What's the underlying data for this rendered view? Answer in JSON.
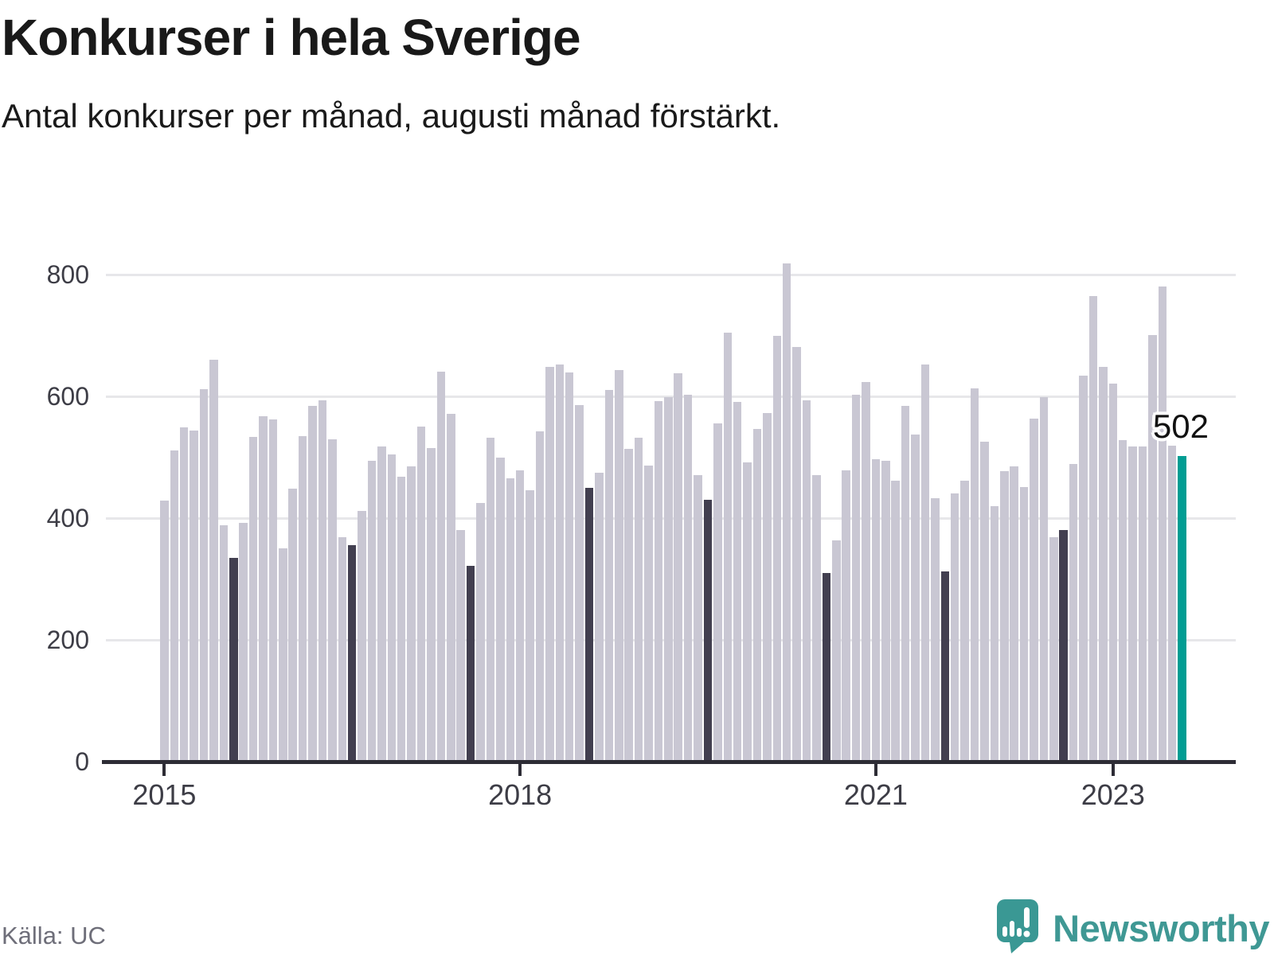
{
  "title": "Konkurser i hela Sverige",
  "subtitle": "Antal konkurser per månad, augusti månad förstärkt.",
  "source": "Källa: UC",
  "logo": {
    "text": "Newsworthy",
    "icon": "newsworthy-speech-bubble-chart-icon"
  },
  "annotation": {
    "value_label": "502"
  },
  "colors": {
    "bar": "#c9c7d3",
    "bar_august": "#423f50",
    "bar_highlight": "#009d93",
    "axis": "#2d2c35",
    "gridline": "#e7e7ea",
    "text": "#191919",
    "muted_text": "#6e6e79",
    "logo_teal": "#3f9894"
  },
  "chart_data": {
    "type": "bar",
    "title": "Konkurser i hela Sverige",
    "subtitle": "Antal konkurser per månad, augusti månad förstärkt.",
    "ylabel": "",
    "xlabel": "",
    "ylim": [
      0,
      860
    ],
    "y_ticks": [
      0,
      200,
      400,
      600,
      800
    ],
    "grid": "horizontal",
    "x_tick_labels": [
      "2015",
      "2018",
      "2021",
      "2023"
    ],
    "x_tick_month_indices": [
      0,
      36,
      72,
      96
    ],
    "start_month": "2015-01",
    "end_month": "2023-08",
    "emphasized_month": "augusti",
    "highlight": {
      "month": "2023-08",
      "value": 502
    },
    "series": [
      {
        "year": 2015,
        "values": [
          429,
          511,
          549,
          544,
          612,
          660,
          388,
          335,
          392,
          533,
          567,
          562
        ]
      },
      {
        "year": 2016,
        "values": [
          350,
          448,
          534,
          584,
          593,
          530,
          368,
          355,
          412,
          494,
          517,
          504
        ]
      },
      {
        "year": 2017,
        "values": [
          468,
          485,
          550,
          515,
          640,
          571,
          381,
          322,
          425,
          532,
          500,
          466
        ]
      },
      {
        "year": 2018,
        "values": [
          478,
          446,
          542,
          648,
          652,
          639,
          586,
          450,
          475,
          611,
          643,
          514
        ]
      },
      {
        "year": 2019,
        "values": [
          532,
          486,
          592,
          599,
          638,
          602,
          471,
          430,
          556,
          705,
          591,
          492
        ]
      },
      {
        "year": 2020,
        "values": [
          547,
          572,
          700,
          818,
          681,
          593,
          471,
          310,
          364,
          478,
          602,
          624
        ]
      },
      {
        "year": 2021,
        "values": [
          497,
          494,
          462,
          584,
          537,
          652,
          433,
          313,
          440,
          462,
          613,
          526
        ]
      },
      {
        "year": 2022,
        "values": [
          420,
          477,
          485,
          451,
          564,
          599,
          369,
          381,
          489,
          634,
          765,
          649
        ]
      },
      {
        "year": 2023,
        "values": [
          621,
          528,
          517,
          518,
          701,
          781,
          519,
          502
        ]
      }
    ]
  }
}
